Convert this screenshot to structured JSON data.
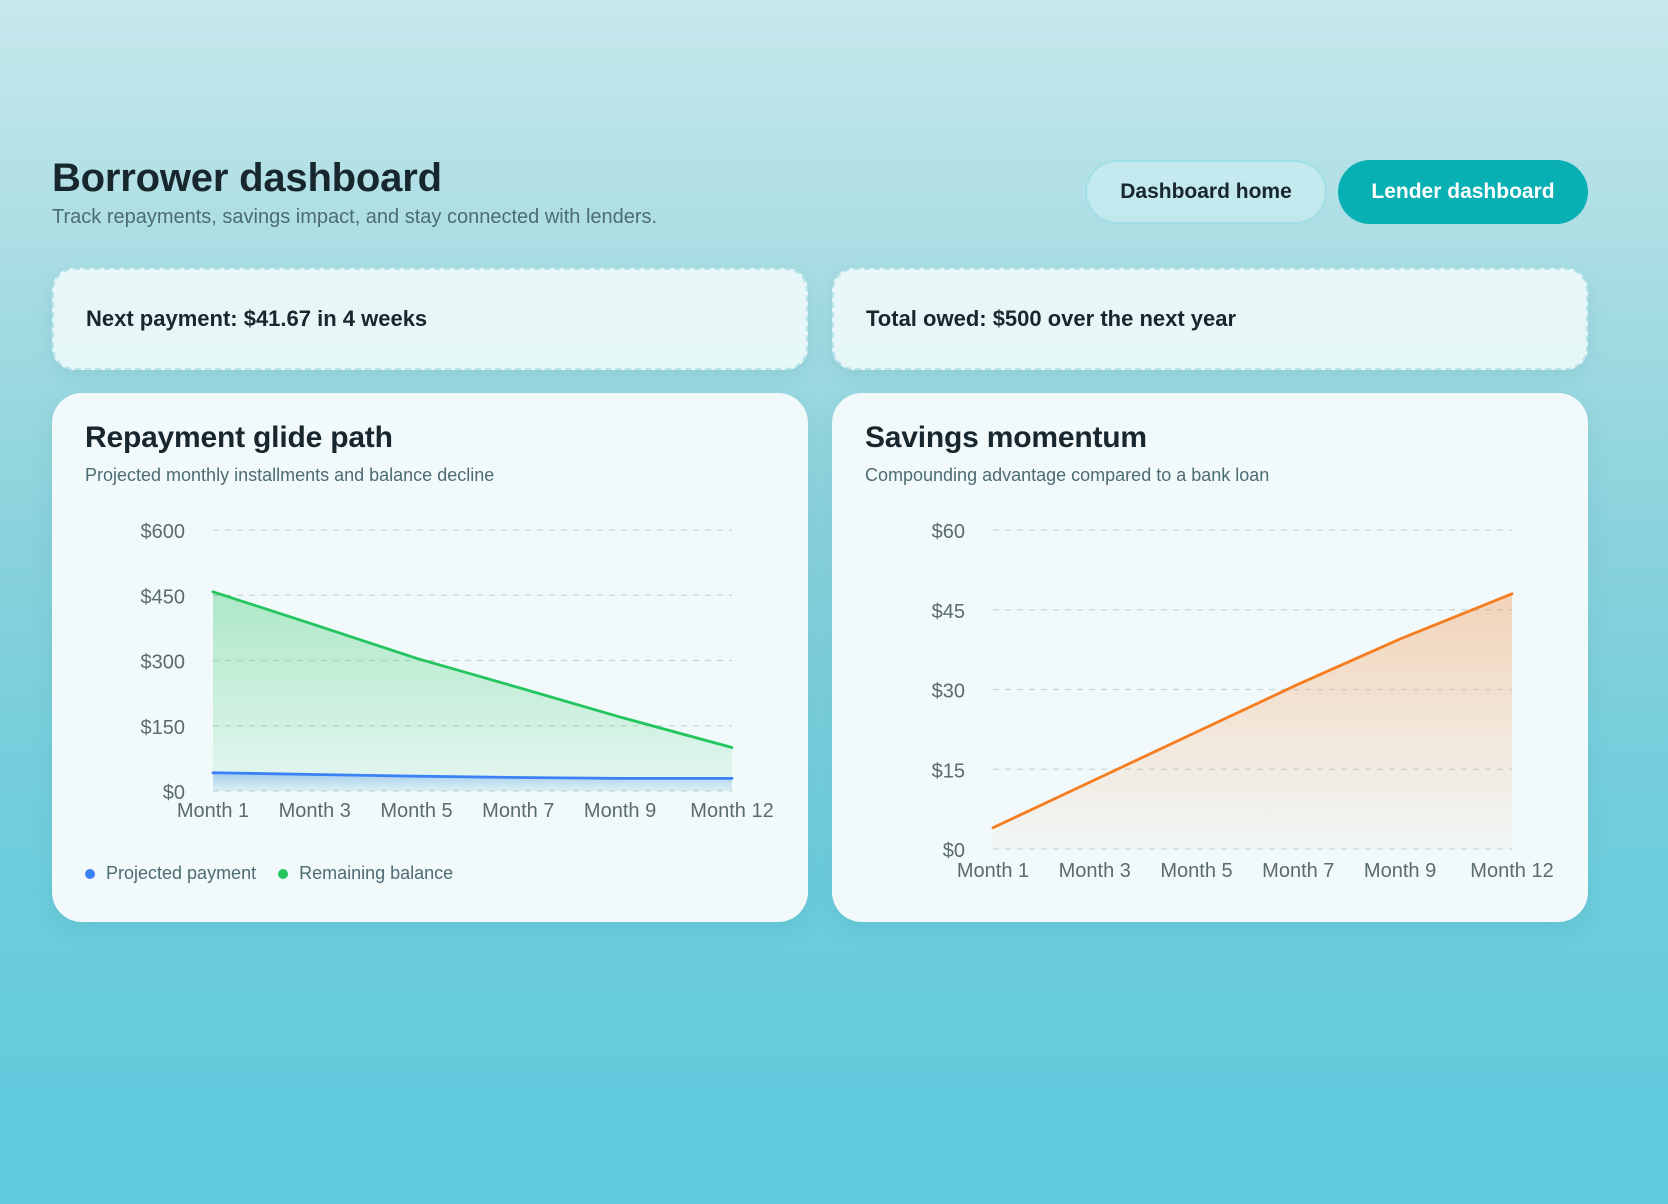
{
  "header": {
    "title": "Borrower dashboard",
    "subtitle": "Track repayments, savings impact, and stay connected with lenders.",
    "nav": {
      "dashboard_home": "Dashboard home",
      "lender_dashboard": "Lender dashboard"
    }
  },
  "summary": {
    "next_payment": "Next payment: $41.67 in 4 weeks",
    "total_owed": "Total owed: $500 over the next year"
  },
  "colors": {
    "accent": "#09b0b3",
    "payment": "#3b82f6",
    "balance": "#22c55e",
    "savings": "#f57c1f"
  },
  "repayment_card": {
    "title": "Repayment glide path",
    "subtitle": "Projected monthly installments and balance decline",
    "legend": [
      "Projected payment",
      "Remaining balance"
    ]
  },
  "savings_card": {
    "title": "Savings momentum",
    "subtitle": "Compounding advantage compared to a bank loan"
  },
  "chart_data": [
    {
      "type": "area",
      "title": "Repayment glide path",
      "subtitle": "Projected monthly installments and balance decline",
      "x": [
        "Month 1",
        "Month 3",
        "Month 5",
        "Month 7",
        "Month 9",
        "Month 12"
      ],
      "ylim": [
        0,
        600
      ],
      "yticks": [
        "$0",
        "$150",
        "$300",
        "$450",
        "$600"
      ],
      "grid": true,
      "legend_position": "bottom-left",
      "series": [
        {
          "name": "Projected payment",
          "values": [
            42,
            38,
            34,
            31,
            29,
            29
          ]
        },
        {
          "name": "Remaining balance",
          "values": [
            458,
            382,
            305,
            238,
            170,
            100
          ]
        }
      ]
    },
    {
      "type": "area",
      "title": "Savings momentum",
      "subtitle": "Compounding advantage compared to a bank loan",
      "x": [
        "Month 1",
        "Month 3",
        "Month 5",
        "Month 7",
        "Month 9",
        "Month 12"
      ],
      "ylim": [
        0,
        60
      ],
      "yticks": [
        "$0",
        "$15",
        "$30",
        "$45",
        "$60"
      ],
      "grid": true,
      "series": [
        {
          "values": [
            4,
            13,
            22,
            31,
            39.5,
            48
          ]
        }
      ]
    }
  ]
}
